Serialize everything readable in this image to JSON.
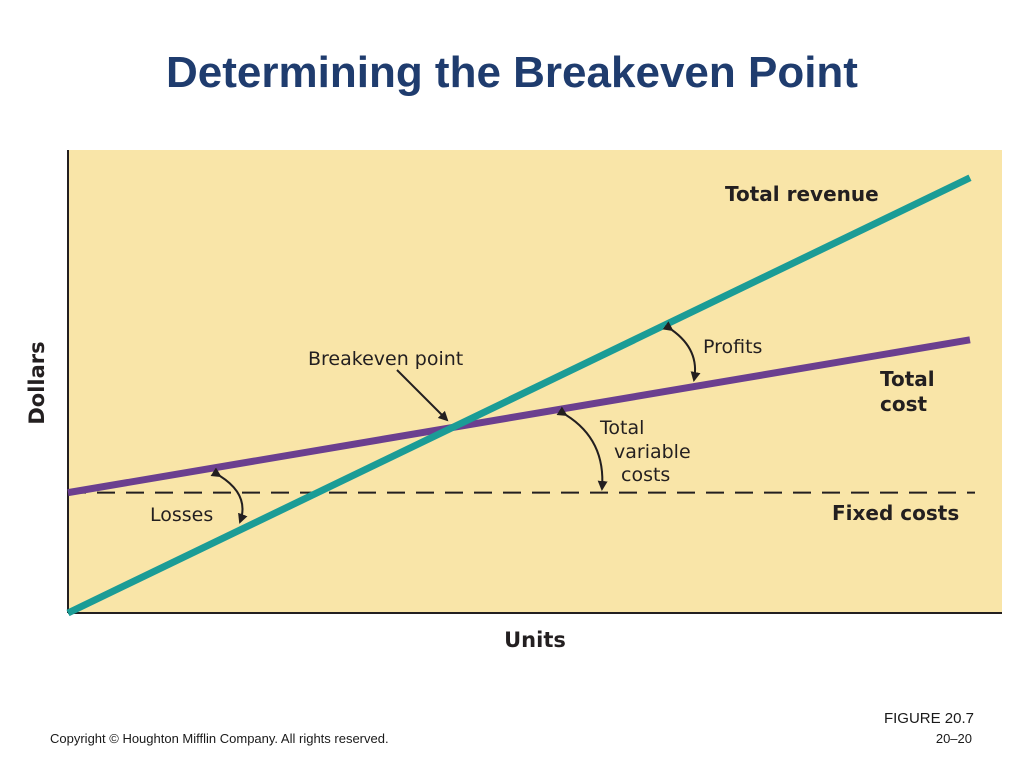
{
  "slide": {
    "title": "Determining the Breakeven Point",
    "figure_label": "FIGURE 20.7",
    "copyright": "Copyright © Houghton Mifflin Company. All rights reserved.",
    "page_number": "20–20"
  },
  "colors": {
    "plot_background": "#f9e5a8",
    "revenue_line": "#1b9c96",
    "cost_line": "#6b3f8f",
    "fixed_cost_line": "#231f20",
    "title": "#1f3c6e"
  },
  "chart_data": {
    "type": "line",
    "xlabel": "Units",
    "ylabel": "Dollars",
    "xlim": [
      0,
      100
    ],
    "ylim": [
      0,
      100
    ],
    "grid": false,
    "series": [
      {
        "name": "Total revenue",
        "x": [
          0,
          100
        ],
        "y": [
          0,
          94
        ]
      },
      {
        "name": "Total cost",
        "x": [
          0,
          100
        ],
        "y": [
          26,
          59
        ]
      },
      {
        "name": "Fixed costs",
        "x": [
          0,
          100
        ],
        "y": [
          26,
          26
        ]
      }
    ],
    "annotations": {
      "breakeven": "Breakeven point",
      "profits": "Profits",
      "losses": "Losses",
      "variable_line1": "Total",
      "variable_line2": "variable",
      "variable_line3": "costs",
      "total_cost_line1": "Total",
      "total_cost_line2": "cost"
    }
  }
}
